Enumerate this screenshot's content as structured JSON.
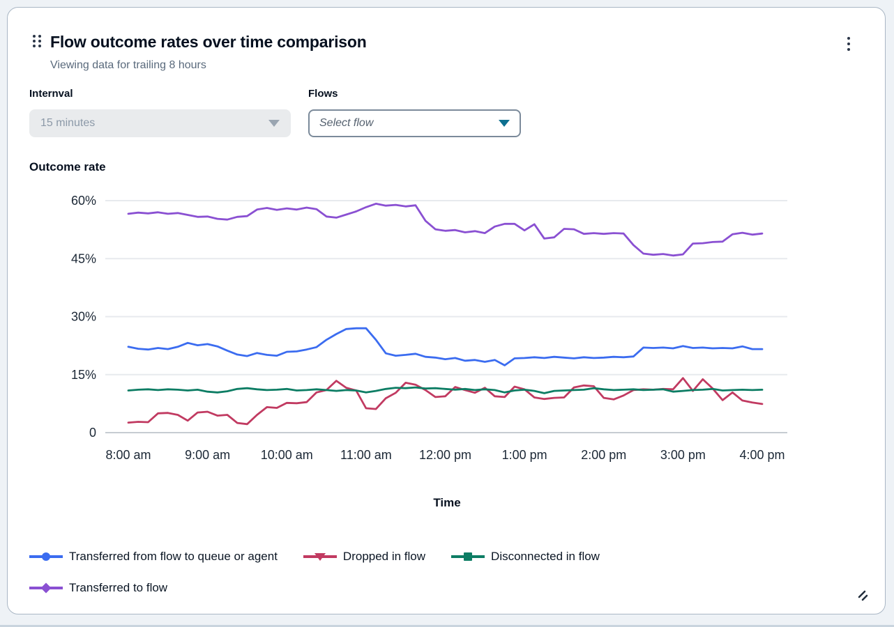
{
  "header": {
    "title": "Flow outcome rates over time comparison",
    "subtitle": "Viewing data for trailing 8 hours"
  },
  "filters": {
    "interval": {
      "label": "Internval",
      "value": "15 minutes",
      "state": "disabled"
    },
    "flows": {
      "label": "Flows",
      "placeholder": "Select flow"
    }
  },
  "colors": {
    "blue": "#3b6cf0",
    "red": "#c13a61",
    "green": "#0d7d64",
    "purple": "#8a50d2",
    "grid": "#e7eaee",
    "axis_text": "#1b2735"
  },
  "chart_data": {
    "type": "line",
    "title": "Outcome rate",
    "xlabel": "Time",
    "ylabel": "Outcome rate",
    "ylim": [
      0,
      60
    ],
    "grid": "horizontal",
    "legend_position": "bottom",
    "y_ticks": [
      0,
      15,
      30,
      45,
      60
    ],
    "y_tick_labels": [
      "0",
      "15%",
      "30%",
      "45%",
      "60%"
    ],
    "x_tick_labels": [
      "8:00 am",
      "9:00 am",
      "10:00 am",
      "11:00 am",
      "12:00 pm",
      "1:00 pm",
      "2:00 pm",
      "3:00 pm",
      "4:00 pm"
    ],
    "x_range": "trailing 8 hours",
    "series": [
      {
        "name": "Transferred from flow to queue or agent",
        "color": "#3b6cf0",
        "marker": "circle",
        "values": [
          22.2,
          21.7,
          21.5,
          21.9,
          21.6,
          22.2,
          23.2,
          22.6,
          22.9,
          22.3,
          21.2,
          20.2,
          19.8,
          20.6,
          20.1,
          19.9,
          20.9,
          21.0,
          21.5,
          22.1,
          24.0,
          25.5,
          26.8,
          27.0,
          27.0,
          24.0,
          20.5,
          19.9,
          20.1,
          20.4,
          19.6,
          19.4,
          19.0,
          19.3,
          18.6,
          18.8,
          18.3,
          18.8,
          17.4,
          19.2,
          19.3,
          19.5,
          19.3,
          19.6,
          19.4,
          19.2,
          19.5,
          19.3,
          19.4,
          19.6,
          19.5,
          19.7,
          22.0,
          21.9,
          22.0,
          21.8,
          22.4,
          21.9,
          22.0,
          21.8,
          21.9,
          21.8,
          22.3,
          21.6,
          21.6
        ]
      },
      {
        "name": "Dropped in flow",
        "color": "#c13a61",
        "marker": "triangle-down",
        "values": [
          2.6,
          2.8,
          2.7,
          5.0,
          5.1,
          4.6,
          3.1,
          5.2,
          5.4,
          4.4,
          4.6,
          2.5,
          2.2,
          4.6,
          6.6,
          6.4,
          7.7,
          7.6,
          7.9,
          10.4,
          11.0,
          13.4,
          11.6,
          10.9,
          6.3,
          6.1,
          8.9,
          10.3,
          12.9,
          12.4,
          11.0,
          9.2,
          9.4,
          11.8,
          11.0,
          10.3,
          11.6,
          9.4,
          9.2,
          11.9,
          11.2,
          9.1,
          8.7,
          9.0,
          9.1,
          11.7,
          12.2,
          12.0,
          9.0,
          8.6,
          9.6,
          11.0,
          11.2,
          11.1,
          11.3,
          11.2,
          14.1,
          10.8,
          13.8,
          11.4,
          8.4,
          10.4,
          8.3,
          7.8,
          7.4
        ]
      },
      {
        "name": "Disconnected in flow",
        "color": "#0d7d64",
        "marker": "square",
        "values": [
          10.9,
          11.1,
          11.2,
          11.0,
          11.2,
          11.1,
          10.9,
          11.1,
          10.6,
          10.4,
          10.7,
          11.3,
          11.5,
          11.2,
          11.0,
          11.1,
          11.3,
          10.9,
          11.0,
          11.2,
          11.0,
          10.8,
          11.0,
          10.9,
          10.4,
          10.8,
          11.3,
          11.6,
          11.5,
          11.7,
          11.4,
          11.5,
          11.3,
          11.1,
          11.3,
          11.0,
          11.2,
          11.0,
          10.4,
          10.9,
          11.1,
          10.8,
          10.2,
          10.8,
          10.9,
          11.0,
          11.1,
          11.5,
          11.2,
          11.0,
          11.1,
          11.2,
          11.0,
          11.1,
          11.2,
          10.6,
          10.8,
          11.0,
          11.1,
          11.3,
          10.9,
          11.0,
          11.1,
          11.0,
          11.1
        ]
      },
      {
        "name": "Transferred to flow",
        "color": "#8a50d2",
        "marker": "diamond",
        "values": [
          56.6,
          56.9,
          56.7,
          57.0,
          56.6,
          56.8,
          56.3,
          55.8,
          55.9,
          55.3,
          55.1,
          55.8,
          56.0,
          57.7,
          58.1,
          57.6,
          58.0,
          57.7,
          58.2,
          57.8,
          55.9,
          55.6,
          56.4,
          57.2,
          58.3,
          59.2,
          58.7,
          58.9,
          58.5,
          58.8,
          54.8,
          52.6,
          52.2,
          52.4,
          51.8,
          52.1,
          51.6,
          53.3,
          54.0,
          54.0,
          52.3,
          53.9,
          50.2,
          50.5,
          52.7,
          52.6,
          51.4,
          51.6,
          51.4,
          51.6,
          51.5,
          48.5,
          46.3,
          46.0,
          46.2,
          45.8,
          46.1,
          48.9,
          49.0,
          49.3,
          49.4,
          51.3,
          51.7,
          51.2,
          51.5
        ]
      }
    ]
  }
}
